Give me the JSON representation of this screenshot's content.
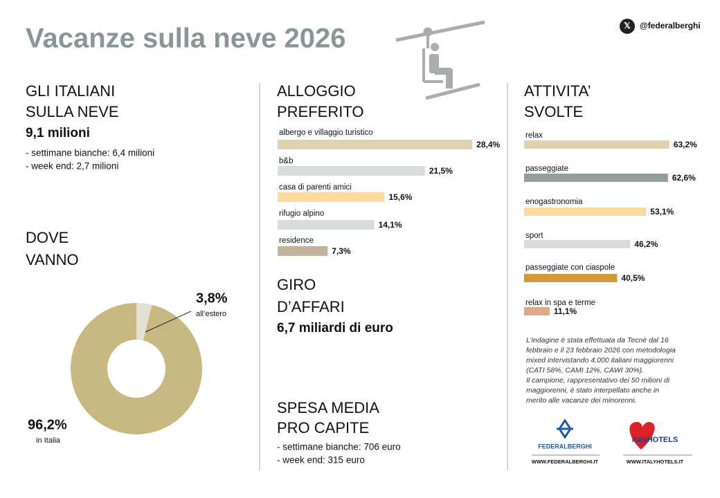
{
  "header": {
    "title": "Vacanze sulla neve 2026",
    "handle": "@federalberghi"
  },
  "italiani": {
    "title_lines": [
      "GLI ITALIANI",
      "SULLA NEVE"
    ],
    "total": "9,1 milioni",
    "details": [
      "- settimane bianche: 6,4 milioni",
      "- week end: 2,7 milioni"
    ]
  },
  "giro_affari": {
    "title_lines": [
      "GIRO",
      "D’AFFARI"
    ],
    "total": "6,7 miliardi di euro"
  },
  "spesa_media": {
    "title_lines": [
      "SPESA MEDIA",
      "PRO CAPITE"
    ],
    "details": [
      "- settimane bianche: 706 euro",
      "- week end:  315 euro"
    ]
  },
  "note": [
    "L’indagine è stata effettuata da Tecnè dal 16",
    "febbraio e il 23 febbraio 2026 con metodologia",
    "mixed intervistando 4.000 italiani maggiorenni",
    "(CATI 58%, CAMI 12%, CAWI 30%).",
    "Il campione, rappresentativo dei 50 milioni di",
    "maggiorenni, è stato interpellato anche in",
    "merito alle vacanze dei minorenni."
  ],
  "logos": {
    "federalberghi": "FEDERALBERGHI",
    "federalberghi_url": "WWW.FEDERALBERGHI.IT",
    "italyhotels": "italyHOTELS",
    "italyhotels_url": "WWW.ITALYHOTELS.IT"
  },
  "chart_data": [
    {
      "type": "pie",
      "title_lines": [
        "DOVE",
        "VANNO"
      ],
      "categories": [
        "all’estero",
        "in Italia"
      ],
      "values": [
        3.8,
        96.2
      ],
      "value_labels": [
        "3,8%",
        "96,2%"
      ],
      "colors": [
        "#e3e0d3",
        "#c8b882"
      ]
    },
    {
      "type": "bar",
      "title_lines": [
        "ALLOGGIO",
        "PREFERITO"
      ],
      "categories": [
        "albergo e villaggio turistico",
        "b&b",
        "casa di parenti amici",
        "rifugio alpino",
        "residence"
      ],
      "values": [
        28.4,
        21.5,
        15.6,
        14.1,
        7.3
      ],
      "value_labels": [
        "28,4%",
        "21,5%",
        "15,6%",
        "14,1%",
        "7,3%"
      ],
      "colors": [
        "#ddd3b0",
        "#d9dcdd",
        "#fcd9a0",
        "#d9dcdd",
        "#c0b4a0"
      ]
    },
    {
      "type": "bar",
      "title_lines": [
        "ATTIVITA’",
        "SVOLTE"
      ],
      "categories": [
        "relax",
        "passeggiate",
        "enogastronomia",
        "sport",
        "passeggiate con ciaspole",
        "relax in spa e terme"
      ],
      "values": [
        63.2,
        62.6,
        53.1,
        46.2,
        40.5,
        11.1
      ],
      "value_labels": [
        "63,2%",
        "62,6%",
        "53,1%",
        "46,2%",
        "40,5%",
        "11,1%"
      ],
      "colors": [
        "#ddd3b0",
        "#959e9e",
        "#fcd9a0",
        "#d9dcdd",
        "#d39a3c",
        "#e0a88a"
      ]
    }
  ]
}
